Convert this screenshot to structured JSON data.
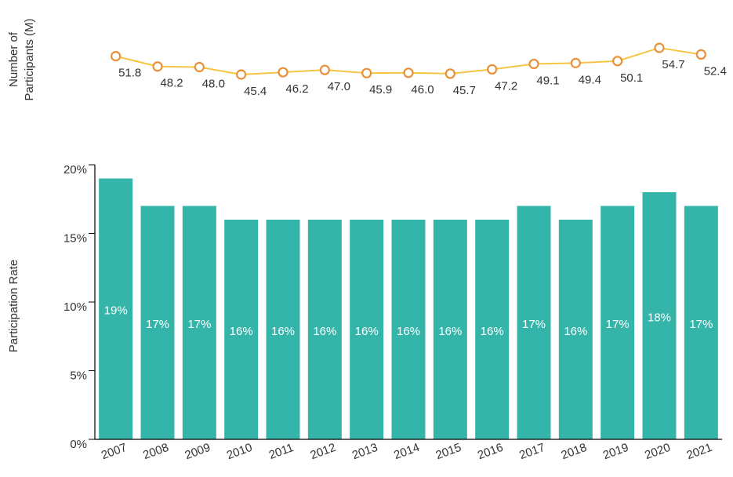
{
  "chart_data": [
    {
      "type": "line",
      "ylabel_lines": [
        "Number of",
        "Participants (M)"
      ],
      "categories": [
        "2007",
        "2008",
        "2009",
        "2010",
        "2011",
        "2012",
        "2013",
        "2014",
        "2015",
        "2016",
        "2017",
        "2018",
        "2019",
        "2020",
        "2021"
      ],
      "values": [
        51.8,
        48.2,
        48.0,
        45.4,
        46.2,
        47.0,
        45.9,
        46.0,
        45.7,
        47.2,
        49.1,
        49.4,
        50.1,
        54.7,
        52.4
      ],
      "value_labels": [
        "51.8",
        "48.2",
        "48.0",
        "45.4",
        "46.2",
        "47.0",
        "45.9",
        "46.0",
        "45.7",
        "47.2",
        "49.1",
        "49.4",
        "50.1",
        "54.7",
        "52.4"
      ],
      "color": "#f5c542",
      "marker_color": "#e8913a"
    },
    {
      "type": "bar",
      "ylabel": "Participation Rate",
      "categories": [
        "2007",
        "2008",
        "2009",
        "2010",
        "2011",
        "2012",
        "2013",
        "2014",
        "2015",
        "2016",
        "2017",
        "2018",
        "2019",
        "2020",
        "2021"
      ],
      "values": [
        19,
        17,
        17,
        16,
        16,
        16,
        16,
        16,
        16,
        16,
        17,
        16,
        17,
        18,
        17
      ],
      "value_labels": [
        "19%",
        "17%",
        "17%",
        "16%",
        "16%",
        "16%",
        "16%",
        "16%",
        "16%",
        "16%",
        "17%",
        "16%",
        "17%",
        "18%",
        "17%"
      ],
      "color": "#35b5aa",
      "ylim": [
        0,
        20
      ],
      "yticks": [
        {
          "value": 0,
          "label": "0%"
        },
        {
          "value": 5,
          "label": "5%"
        },
        {
          "value": 10,
          "label": "10%"
        },
        {
          "value": 15,
          "label": "15%"
        },
        {
          "value": 20,
          "label": "20%"
        }
      ]
    }
  ]
}
